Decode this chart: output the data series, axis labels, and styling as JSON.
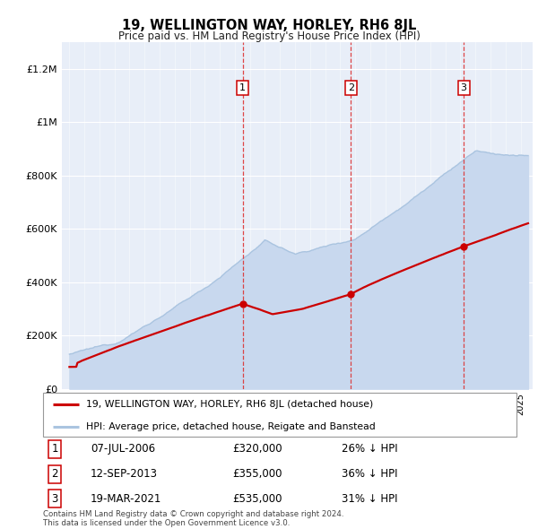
{
  "title": "19, WELLINGTON WAY, HORLEY, RH6 8JL",
  "subtitle": "Price paid vs. HM Land Registry's House Price Index (HPI)",
  "ylabel_ticks": [
    "£0",
    "£200K",
    "£400K",
    "£600K",
    "£800K",
    "£1M",
    "£1.2M"
  ],
  "ylim": [
    0,
    1300000
  ],
  "yticks": [
    0,
    200000,
    400000,
    600000,
    800000,
    1000000,
    1200000
  ],
  "xlim_start": 1994.5,
  "xlim_end": 2025.8,
  "purchase_dates": [
    2006.52,
    2013.71,
    2021.22
  ],
  "purchase_prices": [
    320000,
    355000,
    535000
  ],
  "purchase_labels": [
    "1",
    "2",
    "3"
  ],
  "legend_line1": "19, WELLINGTON WAY, HORLEY, RH6 8JL (detached house)",
  "legend_line2": "HPI: Average price, detached house, Reigate and Banstead",
  "table_data": [
    [
      "1",
      "07-JUL-2006",
      "£320,000",
      "26% ↓ HPI"
    ],
    [
      "2",
      "12-SEP-2013",
      "£355,000",
      "36% ↓ HPI"
    ],
    [
      "3",
      "19-MAR-2021",
      "£535,000",
      "31% ↓ HPI"
    ]
  ],
  "footnote": "Contains HM Land Registry data © Crown copyright and database right 2024.\nThis data is licensed under the Open Government Licence v3.0.",
  "hpi_color": "#aac4e0",
  "hpi_fill_color": "#c8d8ee",
  "price_color": "#cc0000",
  "vline_color": "#dd3333",
  "plot_bg": "#e8eef8"
}
